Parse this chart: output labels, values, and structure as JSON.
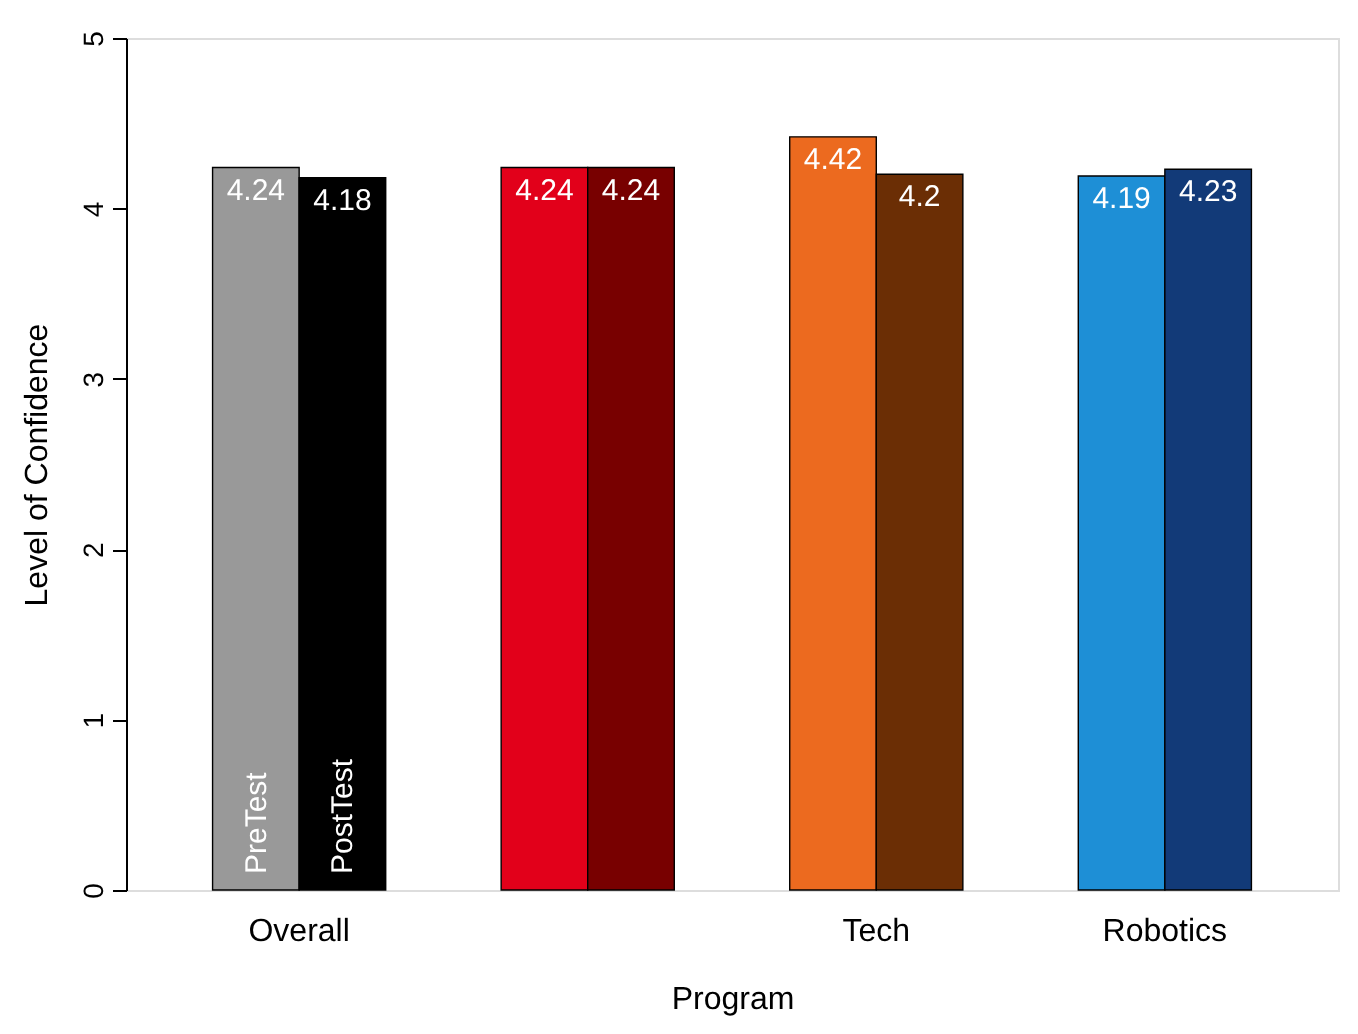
{
  "chart_data": {
    "type": "bar",
    "xlabel": "Program",
    "ylabel": "Level of Confidence",
    "categories": [
      "Overall",
      null,
      "Tech",
      "Robotics"
    ],
    "series": [
      {
        "name": "PreTest",
        "values": [
          4.24,
          4.24,
          4.42,
          4.19
        ],
        "colors": [
          "#999999",
          "#e2001a",
          "#ec6a1f",
          "#1e8fd6"
        ]
      },
      {
        "name": "PostTest",
        "values": [
          4.18,
          4.24,
          4.2,
          4.23
        ],
        "colors": [
          "#000000",
          "#780000",
          "#6b2e05",
          "#123a78"
        ]
      }
    ],
    "ylim": [
      0,
      5
    ],
    "yticks": [
      0,
      1,
      2,
      3,
      4,
      5
    ],
    "data_labels": true
  }
}
